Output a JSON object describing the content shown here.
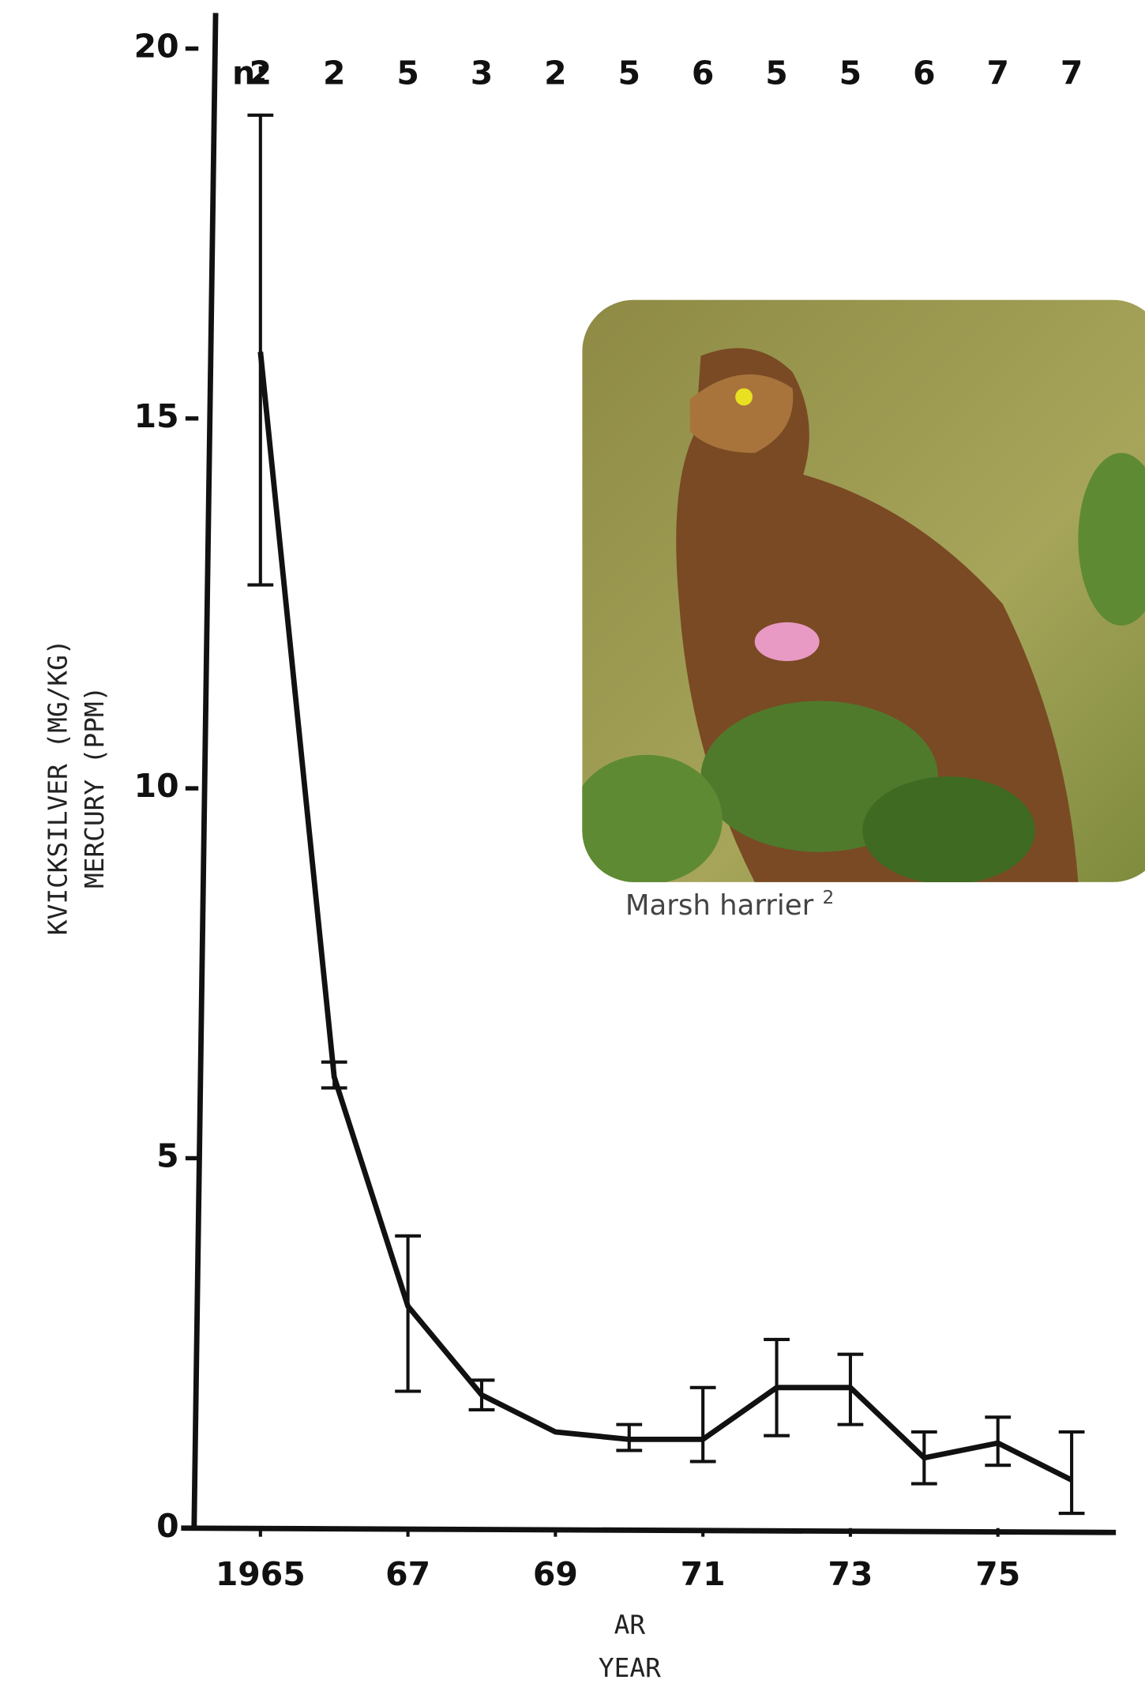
{
  "chart_data": {
    "type": "line",
    "y_label": [
      "KVICKSILVER (MG/KG)",
      "MERCURY (PPM)"
    ],
    "x_label": [
      "AR",
      "YEAR"
    ],
    "x": [
      1965,
      1966,
      1967,
      1968,
      1969,
      1970,
      1971,
      1972,
      1973,
      1974,
      1975,
      1976
    ],
    "values": [
      15.9,
      6.1,
      3.0,
      1.8,
      1.3,
      1.2,
      1.2,
      1.9,
      1.9,
      0.95,
      1.15,
      0.65
    ],
    "err_low": [
      12.75,
      5.95,
      1.85,
      1.6,
      null,
      1.05,
      0.9,
      1.25,
      1.4,
      0.6,
      0.85,
      0.2
    ],
    "err_high": [
      19.1,
      6.3,
      3.95,
      2.0,
      null,
      1.4,
      1.9,
      2.55,
      2.35,
      1.3,
      1.5,
      1.3
    ],
    "n_label": "n:",
    "n": [
      2,
      2,
      5,
      3,
      2,
      5,
      6,
      5,
      5,
      6,
      7,
      7
    ],
    "color": "#111111",
    "xlim": [
      1964.1,
      1976.6
    ],
    "ylim": [
      0,
      20
    ],
    "xticks": [
      {
        "value": 1965,
        "label": "1965"
      },
      {
        "value": 1967,
        "label": "67"
      },
      {
        "value": 1969,
        "label": "69"
      },
      {
        "value": 1971,
        "label": "71"
      },
      {
        "value": 1973,
        "label": "73"
      },
      {
        "value": 1975,
        "label": "75"
      }
    ],
    "yticks": [
      0,
      5,
      10,
      15,
      20
    ]
  },
  "image": {
    "caption": "Marsh harrier",
    "footnote": "2"
  }
}
